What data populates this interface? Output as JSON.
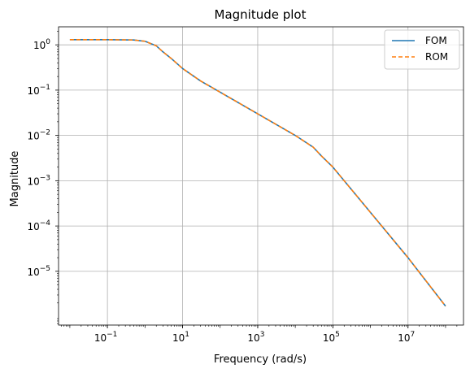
{
  "chart_data": {
    "type": "line",
    "title": "Magnitude plot",
    "xlabel": "Frequency (rad/s)",
    "ylabel": "Magnitude",
    "xscale": "log",
    "yscale": "log",
    "xlim": [
      0.005,
      300000000
    ],
    "ylim": [
      6.5e-07,
      2.5
    ],
    "grid": true,
    "legend_position": "top-right",
    "xticks": [
      {
        "value": 0.1,
        "base": "10",
        "exp": "−1"
      },
      {
        "value": 10,
        "base": "10",
        "exp": "1"
      },
      {
        "value": 1000,
        "base": "10",
        "exp": "3"
      },
      {
        "value": 100000,
        "base": "10",
        "exp": "5"
      },
      {
        "value": 10000000,
        "base": "10",
        "exp": "7"
      }
    ],
    "yticks": [
      {
        "value": 1,
        "base": "10",
        "exp": "0"
      },
      {
        "value": 0.1,
        "base": "10",
        "exp": "−1"
      },
      {
        "value": 0.01,
        "base": "10",
        "exp": "−2"
      },
      {
        "value": 0.001,
        "base": "10",
        "exp": "−3"
      },
      {
        "value": 0.0001,
        "base": "10",
        "exp": "−4"
      },
      {
        "value": 1e-05,
        "base": "10",
        "exp": "−5"
      }
    ],
    "x": [
      0.01,
      0.1,
      0.5,
      1,
      2,
      3,
      5,
      10,
      30,
      100,
      1000,
      10000,
      30000,
      50000,
      100000,
      1000000,
      10000000,
      100000000
    ],
    "series": [
      {
        "name": "FOM",
        "color": "#1f77b4",
        "style": "solid",
        "values": [
          1.3,
          1.3,
          1.28,
          1.2,
          0.95,
          0.7,
          0.5,
          0.3,
          0.16,
          0.09,
          0.03,
          0.01,
          0.0055,
          0.0035,
          0.002,
          0.0002,
          2e-05,
          1.7e-06
        ]
      },
      {
        "name": "ROM",
        "color": "#ff7f0e",
        "style": "dashed",
        "values": [
          1.3,
          1.3,
          1.28,
          1.2,
          0.95,
          0.7,
          0.5,
          0.3,
          0.16,
          0.09,
          0.03,
          0.01,
          0.0055,
          0.0035,
          0.002,
          0.0002,
          2e-05,
          1.7e-06
        ]
      }
    ]
  }
}
